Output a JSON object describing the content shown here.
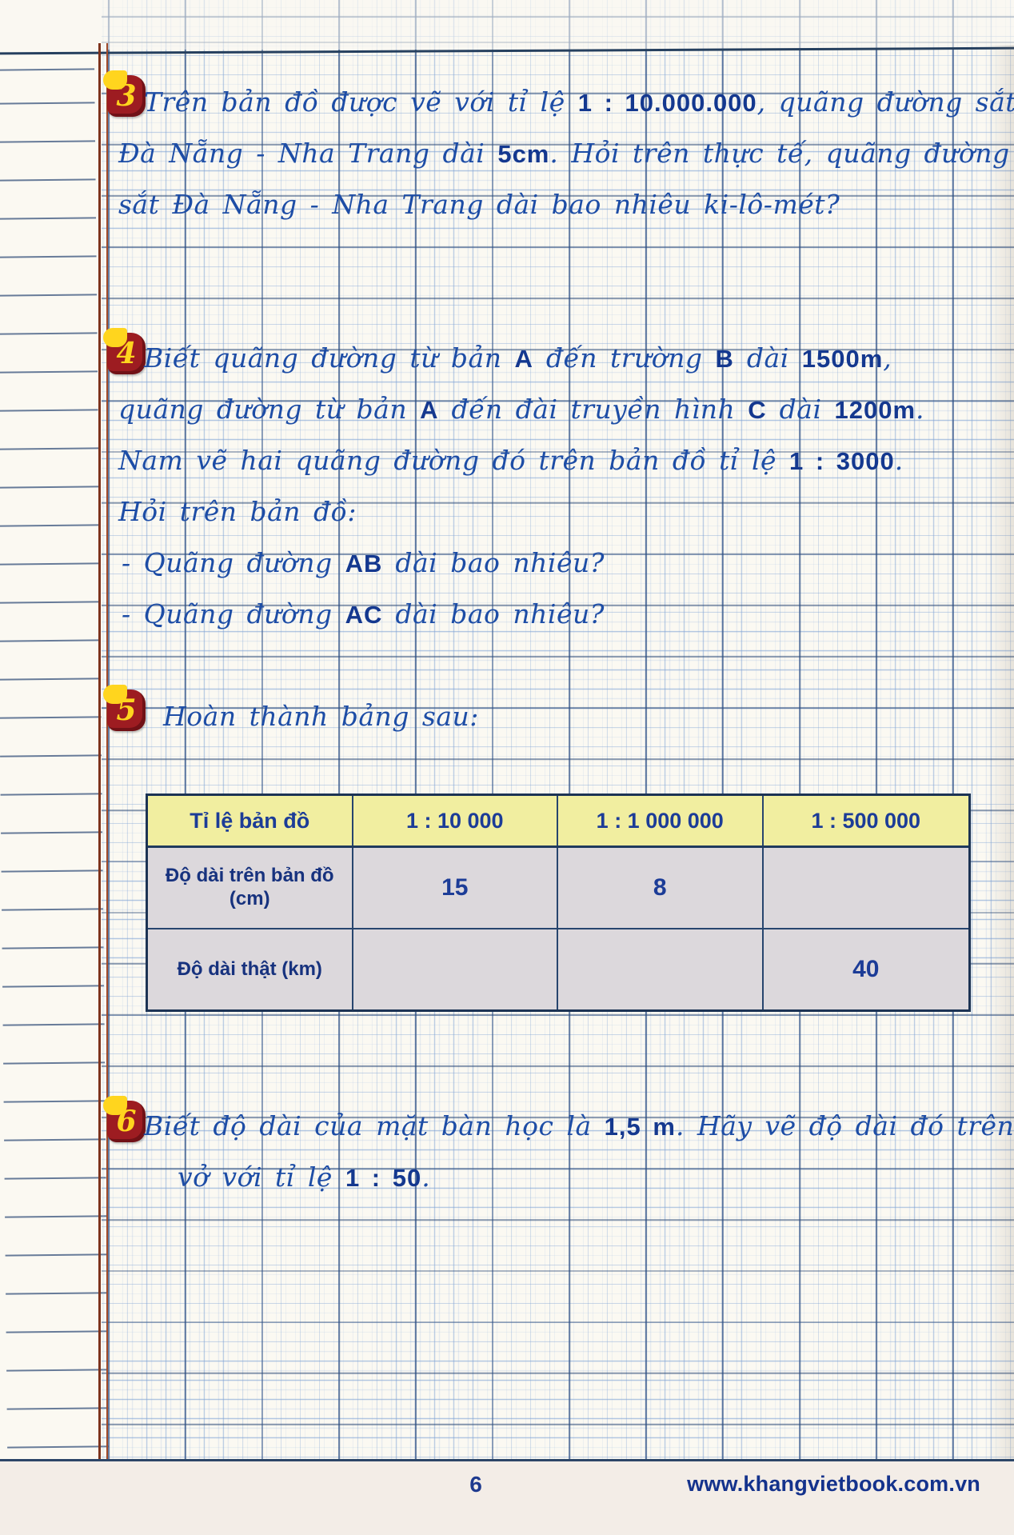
{
  "colors": {
    "handwriting_ink": "#1d4da6",
    "print_ink": "#14388f",
    "badge_red": "#9d1c21",
    "badge_yellow": "#ffd51e",
    "margin_line_red": "#7e331c",
    "table_header_bg": "#f1eea0",
    "table_body_bg": "#dcd8dc",
    "grid_blue": "#7ea2d4"
  },
  "exercises": [
    {
      "number": "3",
      "lines": [
        [
          {
            "t": "Trên bản đồ được vẽ với tỉ lệ "
          },
          {
            "t": "1 : 10.000.000",
            "b": true
          },
          {
            "t": ", quãng đường sắt"
          }
        ],
        [
          {
            "t": "Đà Nẵng - Nha Trang dài "
          },
          {
            "t": "5cm",
            "b": true
          },
          {
            "t": ". Hỏi trên thực tế, quãng đường"
          }
        ],
        [
          {
            "t": "sắt Đà Nẵng - Nha Trang dài bao nhiêu ki-lô-mét?"
          }
        ]
      ]
    },
    {
      "number": "4",
      "lines": [
        [
          {
            "t": "Biết quãng đường từ bản "
          },
          {
            "t": "A",
            "b": true
          },
          {
            "t": " đến trường "
          },
          {
            "t": "B",
            "b": true
          },
          {
            "t": " dài "
          },
          {
            "t": "1500m",
            "b": true
          },
          {
            "t": ","
          }
        ],
        [
          {
            "t": "quãng đường từ bản "
          },
          {
            "t": "A",
            "b": true
          },
          {
            "t": " đến đài truyền hình "
          },
          {
            "t": "C",
            "b": true
          },
          {
            "t": " dài "
          },
          {
            "t": "1200m",
            "b": true
          },
          {
            "t": "."
          }
        ],
        [
          {
            "t": "Nam vẽ hai quãng đường đó trên bản đồ tỉ lệ "
          },
          {
            "t": "1 : 3000",
            "b": true
          },
          {
            "t": "."
          }
        ],
        [
          {
            "t": "Hỏi trên bản đồ:"
          }
        ],
        [
          {
            "t": "- Quãng đường "
          },
          {
            "t": "AB",
            "b": true
          },
          {
            "t": " dài bao nhiêu?"
          }
        ],
        [
          {
            "t": "- Quãng đường "
          },
          {
            "t": "AC",
            "b": true
          },
          {
            "t": " dài bao nhiêu?"
          }
        ]
      ]
    },
    {
      "number": "5",
      "lines": [
        [
          {
            "t": "Hoàn thành bảng sau:"
          }
        ]
      ],
      "table": {
        "header": [
          "Tỉ lệ bản đồ",
          "1 : 10 000",
          "1 : 1 000 000",
          "1 : 500 000"
        ],
        "rows": [
          {
            "label": "Độ dài trên bản đồ",
            "label2": "(cm)",
            "values": [
              "15",
              "8",
              ""
            ]
          },
          {
            "label": "Độ dài thật (km)",
            "label2": "",
            "values": [
              "",
              "",
              "40"
            ]
          }
        ]
      }
    },
    {
      "number": "6",
      "lines": [
        [
          {
            "t": "Biết độ dài của mặt bàn học là "
          },
          {
            "t": "1,5 m",
            "b": true
          },
          {
            "t": ". Hãy vẽ độ dài đó trên"
          }
        ],
        [
          {
            "t": "vở với tỉ lệ "
          },
          {
            "t": "1 : 50",
            "b": true
          },
          {
            "t": "."
          }
        ]
      ]
    }
  ],
  "footer": {
    "page_number": "6",
    "website": "www.khangvietbook.com.vn"
  }
}
